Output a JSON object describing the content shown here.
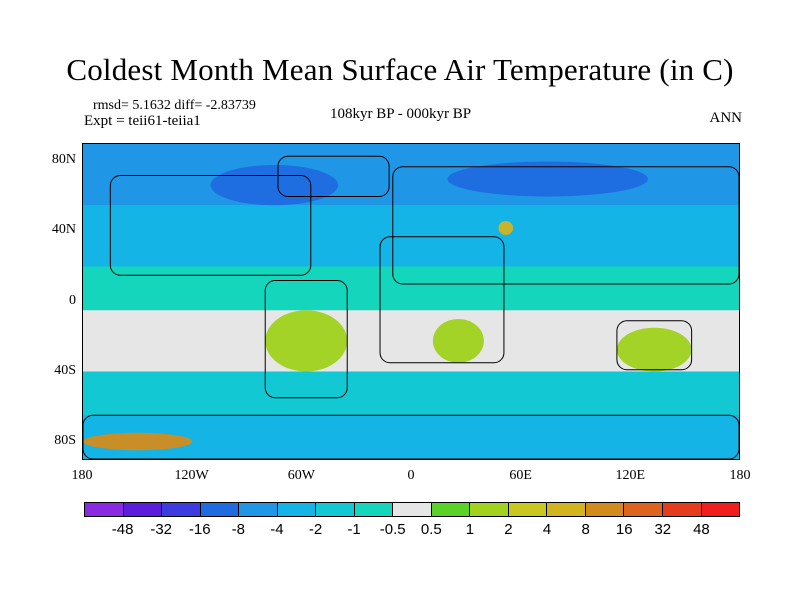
{
  "figure": {
    "title": "Coldest Month Mean Surface Air Temperature (in C)",
    "stats_line": "rmsd= 5.1632 diff= -2.83739",
    "experiment": "Expt = teii61-teiia1",
    "period": "108kyr BP - 000kyr BP",
    "season": "ANN"
  },
  "map": {
    "projection": "cylindrical equidistant",
    "lon_range": [
      -180,
      180
    ],
    "lat_range": [
      -90,
      90
    ],
    "x_ticks": [
      {
        "lon": -180,
        "label": "180"
      },
      {
        "lon": -120,
        "label": "120W"
      },
      {
        "lon": -60,
        "label": "60W"
      },
      {
        "lon": 0,
        "label": "0"
      },
      {
        "lon": 60,
        "label": "60E"
      },
      {
        "lon": 120,
        "label": "120E"
      },
      {
        "lon": 180,
        "label": "180"
      }
    ],
    "y_ticks": [
      {
        "lat": 80,
        "label": "80N"
      },
      {
        "lat": 40,
        "label": "40N"
      },
      {
        "lat": 0,
        "label": "0"
      },
      {
        "lat": -40,
        "label": "40S"
      },
      {
        "lat": -80,
        "label": "80S"
      }
    ],
    "background_level": "-1 to -0.5",
    "regions": [
      {
        "name": "north-polar-cold",
        "lat_range": [
          55,
          90
        ],
        "category": "-8 to -4"
      },
      {
        "name": "northern-midlatitude",
        "lat_range": [
          20,
          55
        ],
        "category": "-4 to -2"
      },
      {
        "name": "tropical-band",
        "lat_range": [
          -5,
          20
        ],
        "category": "-1 to -0.5"
      },
      {
        "name": "southern-neutral-band",
        "lat_range": [
          -40,
          -5
        ],
        "category": "-0.5 to 0.5"
      },
      {
        "name": "southern-ocean",
        "lat_range": [
          -65,
          -40
        ],
        "category": "-2 to -1"
      },
      {
        "name": "antarctic-coast",
        "lat_range": [
          -90,
          -65
        ],
        "category": "-4 to -2"
      },
      {
        "name": "south-america-warm",
        "lat_range": [
          -40,
          -5
        ],
        "category": "1 to 2"
      },
      {
        "name": "southern-africa-warm",
        "lat_range": [
          -35,
          -10
        ],
        "category": "1 to 2"
      },
      {
        "name": "australia-warm",
        "lat_range": [
          -40,
          -15
        ],
        "category": "1 to 2"
      },
      {
        "name": "north-atlantic-cold",
        "lat_range": [
          55,
          78
        ],
        "category": "-16 to -8"
      },
      {
        "name": "siberia-cold",
        "lat_range": [
          60,
          80
        ],
        "category": "-16 to -8"
      },
      {
        "name": "caspian-warm-spot",
        "lat_range": [
          38,
          46
        ],
        "category": "4 to 8"
      },
      {
        "name": "antarctic-peninsula-warm",
        "lat_range": [
          -85,
          -75
        ],
        "category": "8 to 16"
      }
    ]
  },
  "colorbar": {
    "levels": [
      "-48",
      "-32",
      "-16",
      "-8",
      "-4",
      "-2",
      "-1",
      "-0.5",
      "0.5",
      "1",
      "2",
      "4",
      "8",
      "16",
      "32",
      "48"
    ],
    "colors": [
      "#8a2be2",
      "#5a1edc",
      "#3c3ce0",
      "#1f6be0",
      "#1f96e6",
      "#14b4e6",
      "#12c8d2",
      "#14d6bc",
      "#e6e6e6",
      "#5ad228",
      "#a0d21e",
      "#c8c81e",
      "#d2b41e",
      "#d28c1e",
      "#dc641e",
      "#e63c1e",
      "#f01e1e"
    ]
  }
}
